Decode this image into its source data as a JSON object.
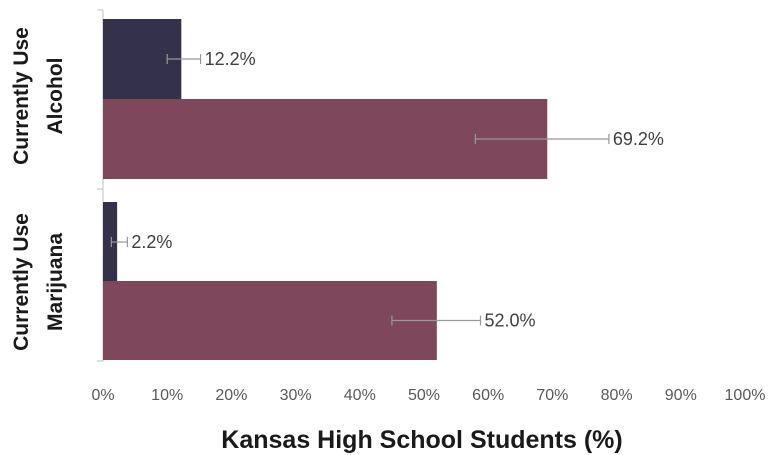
{
  "chart_data": {
    "type": "bar",
    "orientation": "horizontal",
    "categories": [
      {
        "lines": [
          "Currently Use",
          "Alcohol"
        ]
      },
      {
        "lines": [
          "Currently Use",
          "Marijuana"
        ]
      }
    ],
    "series": [
      {
        "color": "#33324a",
        "values": [
          12.2,
          2.2
        ],
        "labels": [
          "12.2%",
          "2.2%"
        ],
        "error_low": [
          10.0,
          1.3
        ],
        "error_high": [
          15.2,
          3.8
        ]
      },
      {
        "color": "#7f475b",
        "values": [
          69.2,
          52.0
        ],
        "labels": [
          "69.2%",
          "52.0%"
        ],
        "error_low": [
          58.0,
          45.0
        ],
        "error_high": [
          78.8,
          58.8
        ]
      }
    ],
    "xlim": [
      0,
      100
    ],
    "x_ticks": [
      "0%",
      "10%",
      "20%",
      "30%",
      "40%",
      "50%",
      "60%",
      "70%",
      "80%",
      "90%",
      "100%"
    ],
    "xlabel": "Kansas High School Students (%)",
    "title": "",
    "ylabel": "",
    "grid": false,
    "legend": "none",
    "error_bar_color": "#999999",
    "axis_color": "#bfbfbf"
  }
}
